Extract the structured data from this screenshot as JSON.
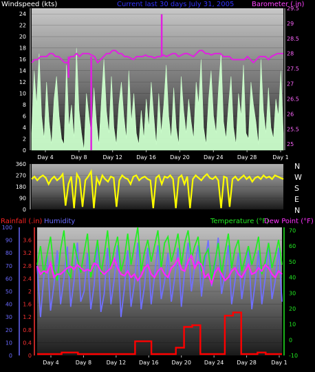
{
  "header": {
    "windspeed_label": "Windspeed (kts)",
    "period_label": "Current last 30 days July 31, 2005",
    "barometer_label": "Barometer (.in)"
  },
  "lower_header": {
    "rainfall_label": "Rainfall (.in)",
    "humidity_label": "Humidity",
    "temperature_label": "Temperature (°F)",
    "dewpoint_label": "Dew Point (°F)"
  },
  "compass_labels": [
    "N",
    "W",
    "S",
    "E",
    "N"
  ],
  "colors": {
    "windspeed": "#ccffcc",
    "barometer": "#e020e0",
    "direction": "#ffff00",
    "humidity": "#7070ff",
    "temperature": "#22ee22",
    "dewpoint": "#ff22ff",
    "rainfall": "#ff0000",
    "windspeed_label": "#ffffff",
    "period_label": "#3333ff",
    "barometer_label": "#ff44ff",
    "rainfall_label": "#ff2222",
    "humidity_label": "#6a6aff",
    "temperature_label": "#22ee22",
    "dewpoint_label": "#ff33ff"
  },
  "chart_data": [
    {
      "type": "area",
      "panel": "wind-barometer",
      "xticks": [
        "Day 4",
        "Day 8",
        "Day 12",
        "Day 16",
        "Day 20",
        "Day 24",
        "Day 28",
        "Day 1"
      ],
      "y_left": {
        "ticks": [
          "0",
          "2",
          "4",
          "6",
          "8",
          "10",
          "12",
          "14",
          "16",
          "18",
          "20",
          "22",
          "24"
        ],
        "range": [
          0,
          25
        ]
      },
      "y_right": {
        "ticks": [
          "25",
          "25.5",
          "26",
          "26.5",
          "27",
          "27.5",
          "28",
          "28.5",
          "29",
          "29.5"
        ],
        "range": [
          24.8,
          29.5
        ]
      },
      "x_range": [
        1,
        31
      ],
      "series": [
        {
          "axis": "left",
          "values": [
            3,
            14,
            8,
            17,
            6,
            2,
            12,
            5,
            1,
            9,
            13,
            6,
            2,
            1,
            15,
            4,
            8,
            2,
            18,
            7,
            3,
            0,
            10,
            6,
            2,
            11,
            5,
            1,
            9,
            16,
            7,
            3,
            13,
            4,
            1,
            8,
            12,
            6,
            2,
            14,
            5,
            10,
            3,
            1,
            7,
            2,
            9,
            4,
            12,
            6,
            1,
            10,
            3,
            8,
            15,
            6,
            2,
            11,
            4,
            1,
            13,
            7,
            3,
            9,
            5,
            2,
            12,
            8,
            16,
            4,
            1,
            9,
            14,
            6,
            3,
            11,
            17,
            5,
            2,
            8,
            13,
            4,
            1,
            10,
            6,
            15,
            3,
            2,
            12,
            8,
            5,
            1,
            16,
            7,
            3,
            11,
            4,
            2,
            9,
            6,
            14,
            3
          ]
        },
        {
          "axis": "right",
          "values": [
            27.7,
            27.8,
            27.8,
            27.9,
            27.9,
            27.9,
            28.0,
            28.0,
            27.9,
            27.9,
            27.8,
            27.7,
            27.7,
            27.9,
            27.9,
            28.0,
            27.9,
            28.0,
            28.0,
            28.0,
            27.95,
            27.9,
            27.7,
            27.8,
            27.9,
            28.0,
            28.0,
            28.1,
            28.1,
            28.0,
            28.0,
            27.9,
            27.9,
            27.85,
            27.8,
            27.9,
            27.9,
            27.9,
            27.95,
            27.9,
            27.9,
            27.85,
            27.9,
            27.9,
            27.95,
            27.9,
            27.95,
            28.0,
            28.0,
            27.9,
            27.95,
            28.0,
            28.0,
            27.95,
            27.9,
            28.0,
            28.1,
            28.1,
            28.0,
            28.0,
            27.95,
            28.0,
            28.0,
            28.0,
            27.9,
            27.9,
            27.9,
            27.8,
            27.8,
            27.8,
            27.8,
            27.8,
            27.9,
            27.8,
            27.7,
            27.8,
            27.9,
            27.9,
            27.9,
            27.8,
            27.9,
            27.95,
            28.0,
            28.0,
            28.0
          ],
          "spikes": [
            {
              "x": 5.4,
              "value": 27.2
            },
            {
              "x": 8.1,
              "value": 24.8
            },
            {
              "x": 16.5,
              "value": 29.3
            }
          ]
        }
      ]
    },
    {
      "type": "line",
      "panel": "wind-direction",
      "xticks": [
        "Day 4",
        "Day 8",
        "Day 12",
        "Day 16",
        "Day 20",
        "Day 24",
        "Day 28",
        "Day 1"
      ],
      "y": {
        "ticks": [
          "0",
          "90",
          "180",
          "270",
          "360"
        ],
        "range": [
          0,
          360
        ]
      },
      "x_range": [
        1,
        31
      ],
      "series": [
        {
          "values": [
            240,
            260,
            230,
            255,
            270,
            250,
            200,
            240,
            260,
            230,
            250,
            280,
            30,
            200,
            260,
            10,
            280,
            240,
            20,
            230,
            260,
            300,
            10,
            250,
            200,
            270,
            240,
            220,
            260,
            250,
            20,
            230,
            270,
            250,
            240,
            200,
            260,
            270,
            230,
            250,
            260,
            240,
            230,
            10,
            250,
            270,
            200,
            260,
            250,
            270,
            240,
            10,
            250,
            270,
            200,
            260,
            10,
            240,
            270,
            250,
            230,
            260,
            280,
            250,
            240,
            260,
            230,
            10,
            260,
            250,
            20,
            240,
            260,
            230,
            250,
            270,
            240,
            260,
            220,
            250,
            260,
            240,
            270,
            250,
            260,
            240,
            270,
            260,
            250,
            240
          ]
        }
      ]
    },
    {
      "type": "line",
      "panel": "temp-humidity-rain",
      "xticks": [
        "Day 4",
        "Day 8",
        "Day 12",
        "Day 16",
        "Day 20",
        "Day 24",
        "Day 28",
        "Day 1"
      ],
      "y_humidity": {
        "ticks": [
          "0",
          "10",
          "20",
          "30",
          "40",
          "50",
          "60",
          "70",
          "80",
          "90",
          "100"
        ],
        "range": [
          0,
          100
        ]
      },
      "y_rain": {
        "ticks": [
          "0",
          "0.4",
          "0.8",
          "1.2",
          "1.6",
          "2",
          "2.4",
          "2.8",
          "3.2",
          "3.6"
        ],
        "range": [
          0,
          4
        ]
      },
      "y_temp": {
        "ticks": [
          "-10",
          "0",
          "10",
          "20",
          "30",
          "40",
          "50",
          "60",
          "70"
        ],
        "range": [
          -10,
          72
        ]
      },
      "x_range": [
        1,
        31
      ],
      "series": [
        {
          "axis": "humidity",
          "values": [
            70,
            30,
            62,
            78,
            35,
            55,
            82,
            40,
            60,
            85,
            38,
            58,
            88,
            42,
            50,
            80,
            36,
            55,
            90,
            34,
            48,
            84,
            40,
            60,
            86,
            30,
            52,
            82,
            38,
            56,
            88,
            36,
            54,
            84,
            40,
            62,
            86,
            44,
            58,
            80,
            42,
            60,
            84,
            38,
            66,
            88,
            50,
            70,
            86,
            46,
            72,
            90,
            54,
            68,
            92,
            48,
            64,
            86,
            40,
            58,
            80,
            44,
            62,
            84,
            36,
            56,
            82,
            40,
            60,
            88,
            44,
            58,
            84,
            42
          ]
        },
        {
          "axis": "temp",
          "values": [
            48,
            60,
            42,
            55,
            66,
            45,
            38,
            58,
            70,
            44,
            40,
            62,
            52,
            43,
            56,
            68,
            40,
            50,
            64,
            42,
            54,
            70,
            46,
            58,
            66,
            44,
            52,
            68,
            48,
            60,
            72,
            44,
            56,
            64,
            50,
            60,
            70,
            46,
            62,
            66,
            50,
            58,
            68,
            48,
            62,
            70,
            52,
            60,
            66,
            44,
            54,
            58,
            38,
            50,
            62,
            42,
            56,
            68,
            46,
            58,
            64,
            44,
            52,
            60,
            48,
            56,
            66,
            42,
            50,
            62,
            46,
            54,
            64,
            48
          ]
        },
        {
          "axis": "temp",
          "values": [
            47,
            42,
            44,
            43,
            49,
            40,
            42,
            42,
            44,
            46,
            47,
            45,
            48,
            46,
            44,
            45,
            44,
            49,
            48,
            44,
            42,
            44,
            46,
            52,
            46,
            42,
            41,
            44,
            40,
            42,
            38,
            41,
            46,
            48,
            42,
            40,
            44,
            46,
            42,
            40,
            46,
            48,
            52,
            45,
            44,
            50,
            54,
            46,
            50,
            48,
            40,
            42,
            36,
            43,
            46,
            42,
            38,
            40,
            44,
            46,
            42,
            40,
            44,
            48,
            42,
            43,
            46,
            44,
            48,
            46,
            42,
            40,
            44,
            42
          ]
        },
        {
          "axis": "rain",
          "values": [
            0,
            0,
            0,
            0.05,
            0.05,
            0,
            0,
            0,
            0,
            0,
            0,
            0,
            0.4,
            0.4,
            0,
            0,
            0,
            0.2,
            0.85,
            0.9,
            0,
            0,
            0,
            1.2,
            1.3,
            0,
            0,
            0.05,
            0,
            0
          ]
        }
      ]
    }
  ]
}
